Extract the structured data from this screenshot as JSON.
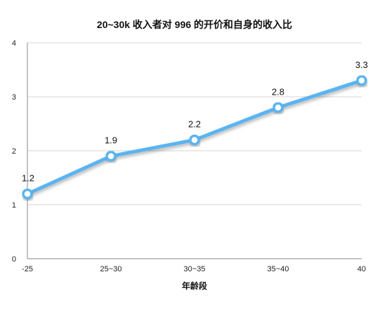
{
  "chart_data": {
    "type": "line",
    "title": "20~30k 收入者对 996 的开价和自身的收入比",
    "xlabel": "年龄段",
    "ylabel": "",
    "categories": [
      "-25",
      "25~30",
      "30~35",
      "35~40",
      "40"
    ],
    "series": [
      {
        "values": [
          1.2,
          1.9,
          2.2,
          2.8,
          3.3
        ],
        "data_labels": [
          "1.2",
          "1.9",
          "2.2",
          "2.8",
          "3.3"
        ]
      }
    ],
    "ylim": [
      0,
      4
    ],
    "yticks": [
      0,
      1,
      2,
      3,
      4
    ],
    "grid": true,
    "legend": "none",
    "colors": {
      "line": "#5ab4f0",
      "marker_fill": "#ffffff"
    }
  }
}
